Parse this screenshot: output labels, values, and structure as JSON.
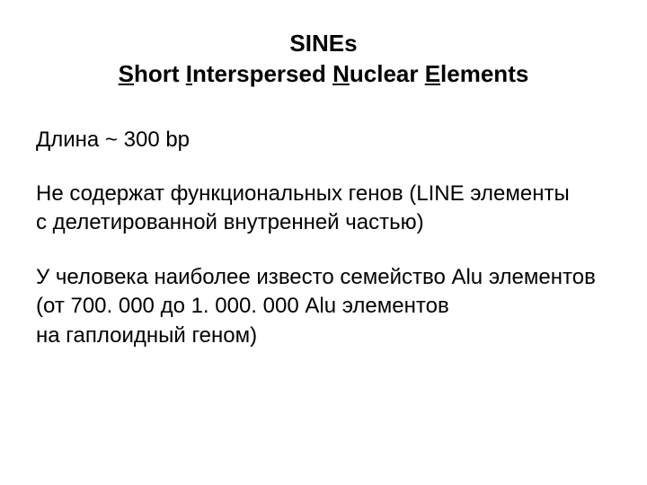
{
  "colors": {
    "background": "#ffffff",
    "text": "#000000"
  },
  "typography": {
    "title_fontsize": 26,
    "title_fontweight": "bold",
    "body_fontsize": 24,
    "body_fontweight": "normal",
    "font_family": "Arial"
  },
  "title": {
    "line1": "SINEs",
    "line2_parts": {
      "s": "S",
      "hort": "hort ",
      "i": "I",
      "nterspersed": "nterspersed ",
      "n": "N",
      "uclear": "uclear ",
      "e": "E",
      "lements": "lements"
    }
  },
  "para1": "Длина ~ 300 bp",
  "para2_line1": "Не содержат функциональных генов (LINE элементы",
  "para2_line2": "с делетированной внутренней частью)",
  "para3_line1": "У человека наиболее извеcто семейство Alu элементов",
  "para3_line2": "(от 700. 000 до 1. 000. 000 Alu элементов",
  "para3_line3": "на гаплоидный геном)"
}
